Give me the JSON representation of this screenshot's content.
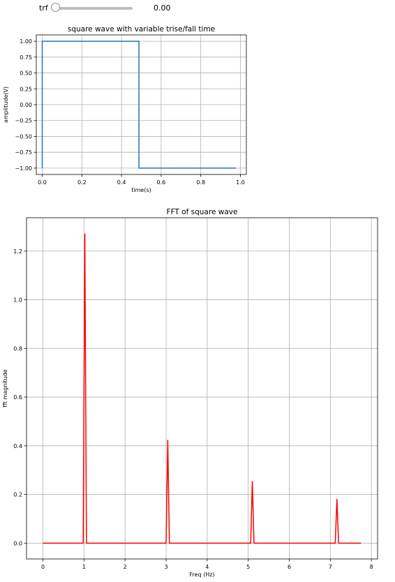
{
  "controls": {
    "slider_label": "trf",
    "slider_value": "0.00",
    "slider_fraction": 0.0
  },
  "chart_data": [
    {
      "type": "line",
      "title": "square wave with variable trise/fall time",
      "xlabel": "time(s)",
      "ylabel": "amplitude(V)",
      "xlim": [
        -0.03,
        1.03
      ],
      "ylim": [
        -1.1,
        1.1
      ],
      "xticks": [
        0.0,
        0.2,
        0.4,
        0.6,
        0.8,
        1.0
      ],
      "xtick_labels": [
        "0.0",
        "0.2",
        "0.4",
        "0.6",
        "0.8",
        "1.0"
      ],
      "yticks": [
        1.0,
        0.75,
        0.5,
        0.25,
        0.0,
        -0.25,
        -0.5,
        -0.75,
        -1.0
      ],
      "ytick_labels": [
        "1.00",
        "0.75",
        "0.50",
        "0.25",
        "0.00",
        "−0.25",
        "−0.50",
        "−0.75",
        "−1.00"
      ],
      "grid": true,
      "color": "#1f77b4",
      "series": [
        {
          "x": [
            0.0,
            0.0,
            0.488,
            0.488,
            0.977
          ],
          "y": [
            -1.0,
            1.0,
            1.0,
            -1.0,
            -1.0
          ]
        }
      ]
    },
    {
      "type": "line",
      "title": "FFT of square wave",
      "xlabel": "Freq (Hz)",
      "ylabel": "fft magnitude",
      "xlim": [
        -0.4,
        8.15
      ],
      "ylim": [
        -0.065,
        1.337
      ],
      "xticks": [
        0,
        1,
        2,
        3,
        4,
        5,
        6,
        7,
        8
      ],
      "xtick_labels": [
        "0",
        "1",
        "2",
        "3",
        "4",
        "5",
        "6",
        "7",
        "8"
      ],
      "yticks": [
        0.0,
        0.2,
        0.4,
        0.6,
        0.8,
        1.0,
        1.2
      ],
      "ytick_labels": [
        "0.0",
        "0.2",
        "0.4",
        "0.6",
        "0.8",
        "1.0",
        "1.2"
      ],
      "grid": true,
      "color": "#ff0000",
      "series": [
        {
          "x": [
            0,
            0.98,
            1.02,
            1.06,
            3.0,
            3.04,
            3.08,
            5.06,
            5.1,
            5.14,
            7.12,
            7.16,
            7.2,
            7.75
          ],
          "y": [
            0.0,
            0.0,
            1.272,
            0.0,
            0.0,
            0.424,
            0.0,
            0.0,
            0.255,
            0.0,
            0.0,
            0.182,
            0.0,
            0.0
          ]
        }
      ]
    }
  ]
}
